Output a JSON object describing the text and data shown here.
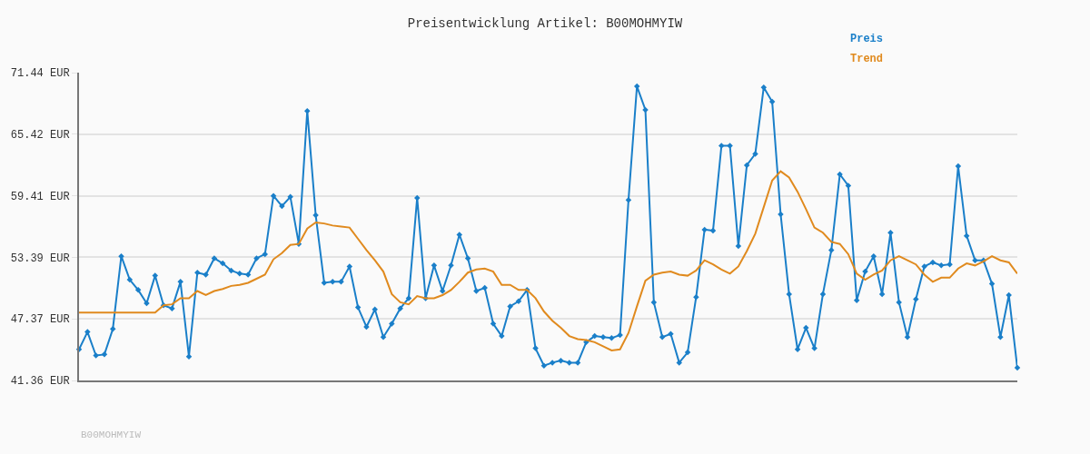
{
  "chart_data": {
    "type": "line",
    "title": "Preisentwicklung Artikel: B00MOHMYIW",
    "categories": [
      null,
      null,
      null,
      null,
      null,
      null,
      null,
      null,
      null,
      null,
      null,
      null,
      null,
      null,
      null,
      null,
      null,
      null,
      null,
      null,
      null,
      null,
      null,
      null,
      null,
      null,
      null,
      null,
      null,
      null,
      null,
      null,
      null,
      null,
      null,
      null,
      null,
      null,
      null,
      null,
      null,
      null,
      null,
      null,
      null,
      null,
      null,
      null,
      null,
      null,
      null,
      null,
      null,
      null,
      null,
      null,
      null,
      null,
      null,
      null,
      null,
      null,
      null,
      null,
      null,
      null,
      null,
      null,
      null,
      null,
      null,
      null,
      null,
      null,
      null,
      null,
      null,
      null,
      null,
      null,
      null,
      null,
      null,
      null,
      null,
      null,
      null,
      null,
      null,
      null,
      null,
      null,
      null,
      null,
      null,
      null,
      null,
      null,
      null,
      null,
      null,
      null,
      null,
      null,
      null,
      null,
      null,
      null,
      null,
      null,
      null,
      null
    ],
    "series": [
      {
        "name": "Preis",
        "color": "#1a7fc9",
        "marker": "diamond",
        "values": [
          44.4,
          46.1,
          43.8,
          43.9,
          46.4,
          53.5,
          51.2,
          50.2,
          48.9,
          51.6,
          48.7,
          48.4,
          51.0,
          43.7,
          51.9,
          51.7,
          53.3,
          52.8,
          52.1,
          51.8,
          51.7,
          53.3,
          53.7,
          59.4,
          58.4,
          59.3,
          54.7,
          67.7,
          57.5,
          50.9,
          51.0,
          51.0,
          52.5,
          48.5,
          46.6,
          48.3,
          45.6,
          46.9,
          48.4,
          49.4,
          59.2,
          49.4,
          52.6,
          50.1,
          52.6,
          55.6,
          53.3,
          50.1,
          50.4,
          46.9,
          45.7,
          48.6,
          49.1,
          50.2,
          44.5,
          42.8,
          43.1,
          43.3,
          43.1,
          43.1,
          45.1,
          45.7,
          45.6,
          45.5,
          45.8,
          59.0,
          70.1,
          67.8,
          49.0,
          45.6,
          45.9,
          43.1,
          44.1,
          49.5,
          56.1,
          56.0,
          64.3,
          64.3,
          54.5,
          62.4,
          63.5,
          70.0,
          68.6,
          57.6,
          49.8,
          44.4,
          46.5,
          44.5,
          49.8,
          54.1,
          61.5,
          60.4,
          49.2,
          52.0,
          53.5,
          49.8,
          55.8,
          49.0,
          45.6,
          49.3,
          52.5,
          52.9,
          52.6,
          52.7,
          62.3,
          55.5,
          53.1,
          53.1,
          50.8,
          45.6,
          49.7,
          42.6
        ]
      },
      {
        "name": "Trend",
        "color": "#e08a1e",
        "marker": "none",
        "values": [
          48.0,
          48.0,
          48.0,
          48.0,
          48.0,
          48.0,
          48.0,
          48.0,
          48.0,
          48.0,
          48.7,
          48.8,
          49.4,
          49.4,
          50.1,
          49.7,
          50.1,
          50.3,
          50.6,
          50.7,
          50.9,
          51.3,
          51.7,
          53.2,
          53.8,
          54.6,
          54.7,
          56.2,
          56.8,
          56.7,
          56.5,
          56.4,
          56.3,
          55.2,
          54.1,
          53.1,
          52.0,
          49.8,
          49.0,
          48.8,
          49.6,
          49.4,
          49.4,
          49.7,
          50.2,
          51.0,
          51.9,
          52.2,
          52.3,
          52.0,
          50.7,
          50.7,
          50.2,
          50.2,
          49.4,
          48.1,
          47.2,
          46.5,
          45.7,
          45.4,
          45.3,
          45.1,
          44.7,
          44.3,
          44.4,
          46.0,
          48.6,
          51.1,
          51.7,
          51.9,
          52.0,
          51.7,
          51.6,
          52.1,
          53.1,
          52.7,
          52.2,
          51.8,
          52.5,
          54.0,
          55.7,
          58.3,
          60.9,
          61.8,
          61.2,
          59.8,
          58.1,
          56.3,
          55.8,
          54.9,
          54.7,
          53.7,
          51.8,
          51.2,
          51.7,
          52.1,
          53.1,
          53.5,
          53.1,
          52.7,
          51.7,
          51.0,
          51.4,
          51.4,
          52.3,
          52.8,
          52.6,
          53.0,
          53.5,
          53.1,
          52.9,
          51.8
        ]
      }
    ],
    "ylim": [
      41.36,
      71.44
    ],
    "yticks": [
      {
        "value": 41.36,
        "label": "41.36 EUR"
      },
      {
        "value": 47.37,
        "label": "47.37 EUR"
      },
      {
        "value": 53.39,
        "label": "53.39 EUR"
      },
      {
        "value": 59.41,
        "label": "59.41 EUR"
      },
      {
        "value": 65.42,
        "label": "65.42 EUR"
      },
      {
        "value": 71.44,
        "label": "71.44 EUR"
      }
    ],
    "grid": "y",
    "legend": "top right",
    "line_style": "solid",
    "annotations": [
      "B00MOHMYIW"
    ]
  }
}
